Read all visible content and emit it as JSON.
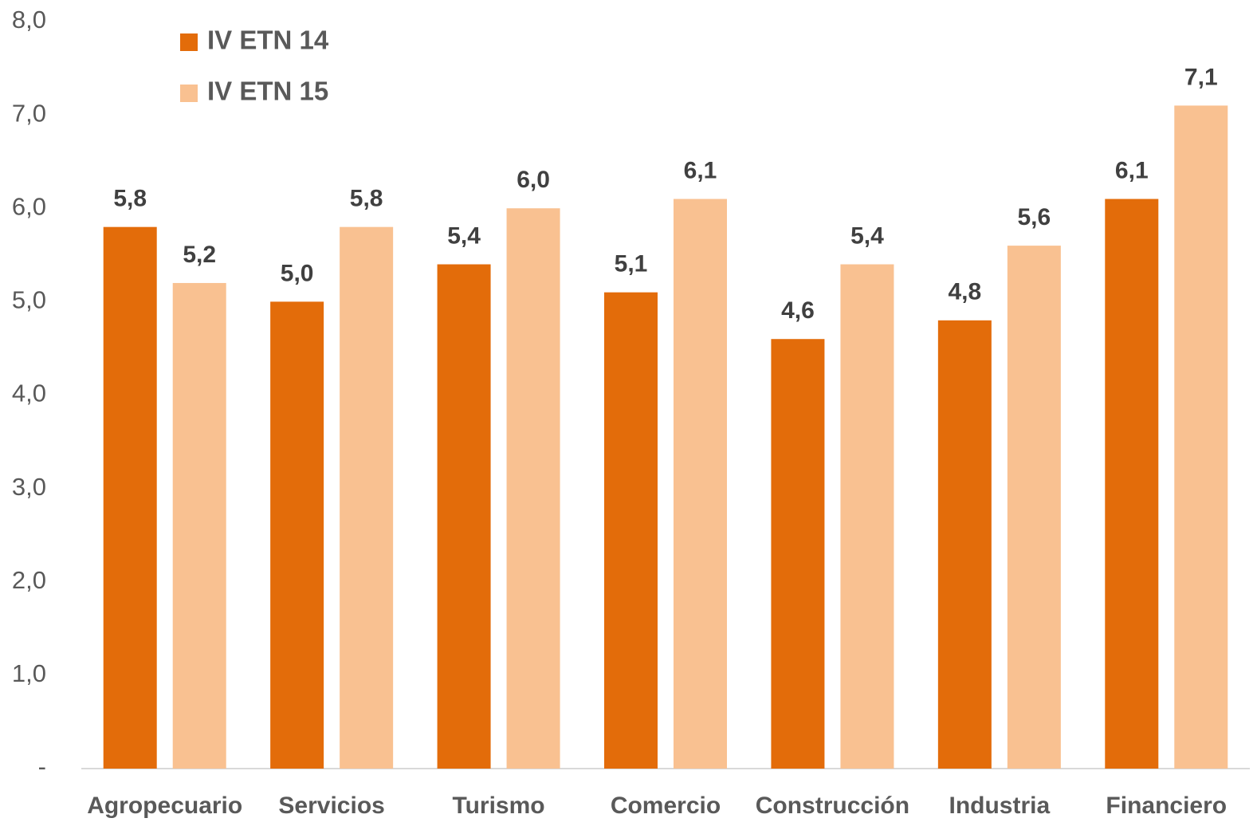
{
  "chart_data": {
    "type": "bar",
    "categories": [
      "Agropecuario",
      "Servicios",
      "Turismo",
      "Comercio",
      "Construcción",
      "Industria",
      "Financiero"
    ],
    "series": [
      {
        "name": "IV ETN 14",
        "color": "#e36c0a",
        "values": [
          5.8,
          5.0,
          5.4,
          5.1,
          4.6,
          4.8,
          6.1
        ],
        "value_labels": [
          "5,8",
          "5,0",
          "5,4",
          "5,1",
          "4,6",
          "4,8",
          "6,1"
        ]
      },
      {
        "name": "IV ETN 15",
        "color": "#f9c191",
        "values": [
          5.2,
          5.8,
          6.0,
          6.1,
          5.4,
          5.6,
          7.1
        ],
        "value_labels": [
          "5,2",
          "5,8",
          "6,0",
          "6,1",
          "5,4",
          "5,6",
          "7,1"
        ]
      }
    ],
    "ylim": [
      0,
      8
    ],
    "yticks": [
      {
        "value": 0,
        "label": "-"
      },
      {
        "value": 1,
        "label": "1,0"
      },
      {
        "value": 2,
        "label": "2,0"
      },
      {
        "value": 3,
        "label": "3,0"
      },
      {
        "value": 4,
        "label": "4,0"
      },
      {
        "value": 5,
        "label": "5,0"
      },
      {
        "value": 6,
        "label": "6,0"
      },
      {
        "value": 7,
        "label": "7,0"
      },
      {
        "value": 8,
        "label": "8,0"
      }
    ],
    "legend": "top-left",
    "grid": false
  }
}
